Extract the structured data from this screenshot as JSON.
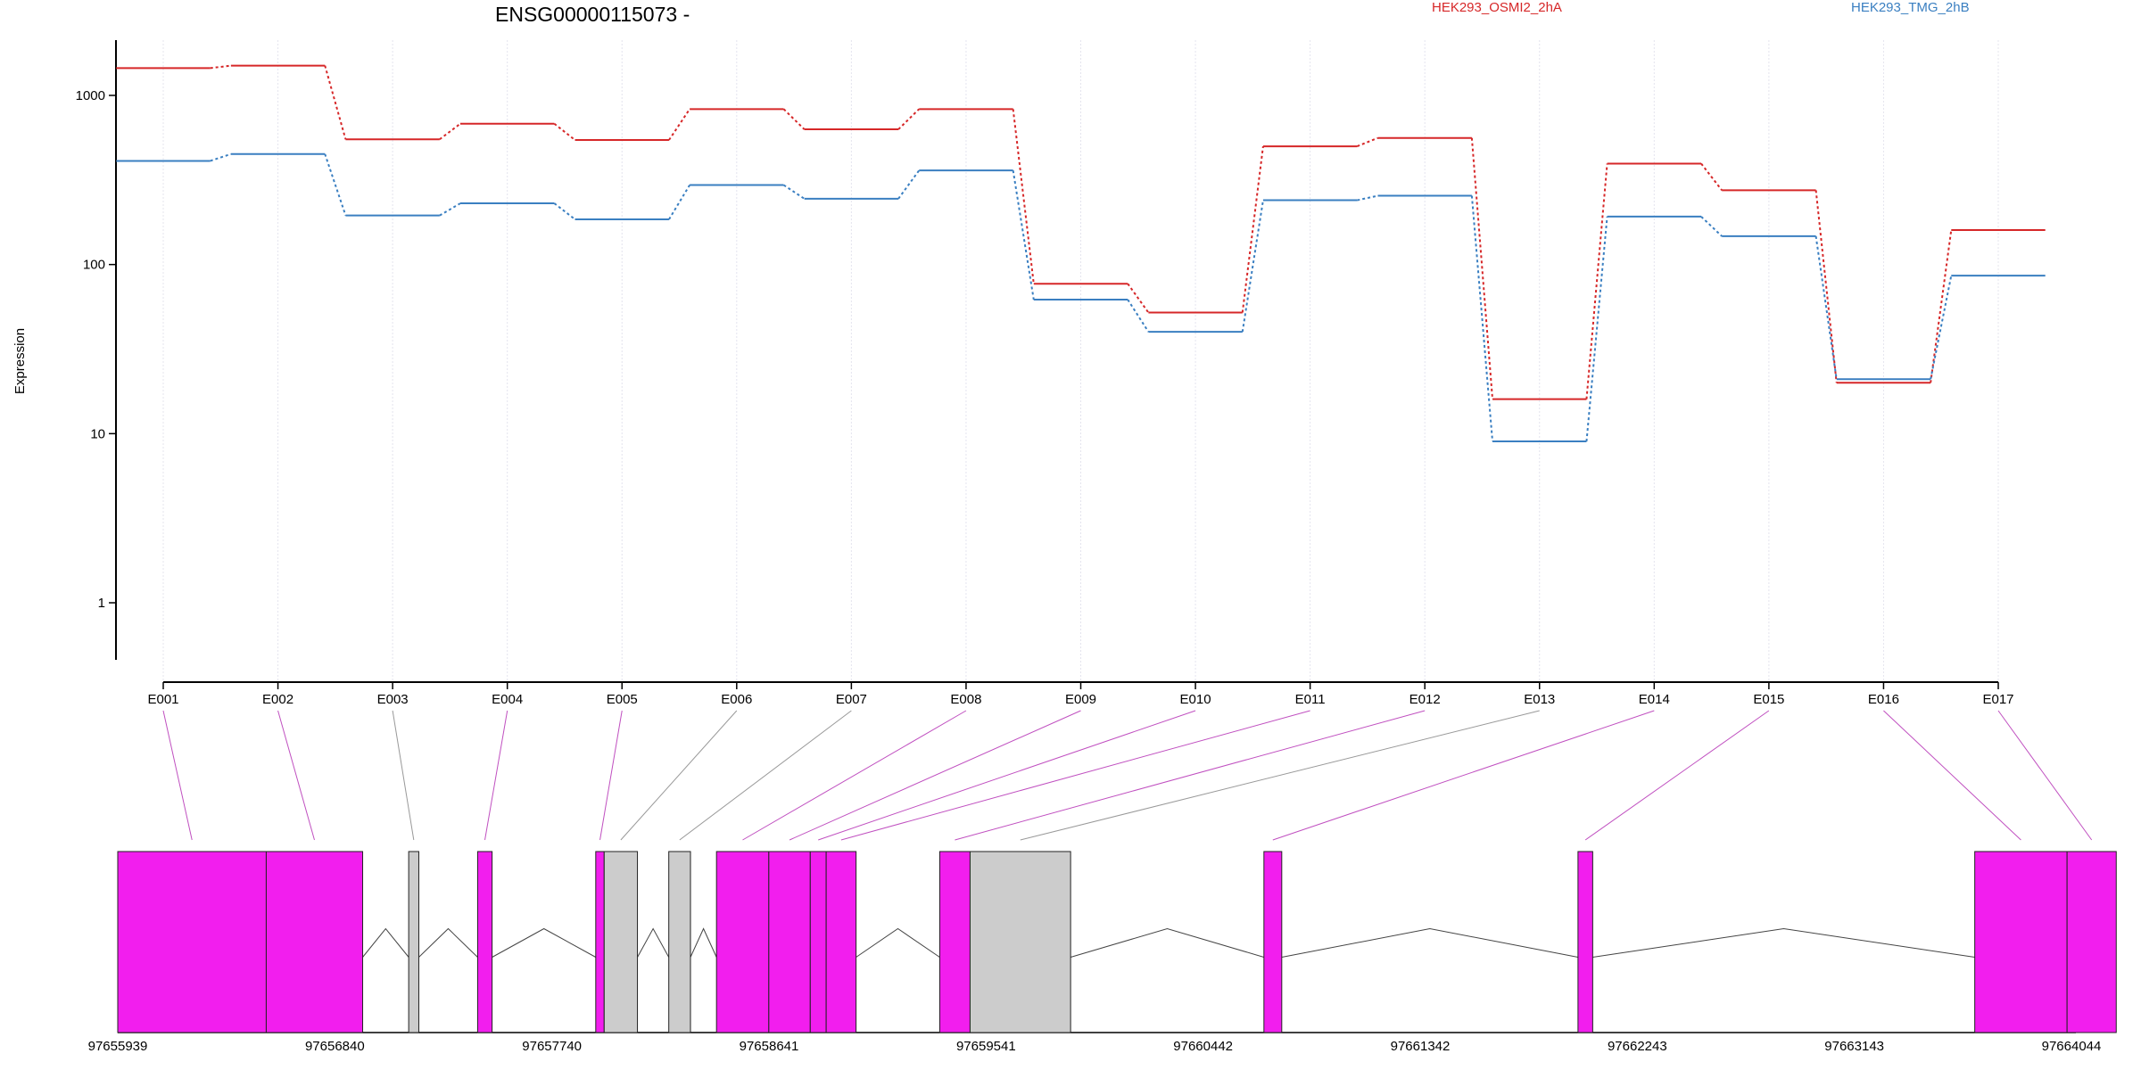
{
  "chart_data": {
    "type": "line",
    "title": "ENSG00000115073 -",
    "ylabel": "Expression",
    "y_scale": "log",
    "ylim": [
      0.5,
      2000
    ],
    "y_ticks": [
      1,
      10,
      100,
      1000
    ],
    "y_tick_labels": [
      "1",
      "10",
      "100",
      "1000"
    ],
    "grid": "vertical dotted lines at each exon",
    "categories": [
      "E001",
      "E002",
      "E003",
      "E004",
      "E005",
      "E006",
      "E007",
      "E008",
      "E009",
      "E010",
      "E011",
      "E012",
      "E013",
      "E014",
      "E015",
      "E016",
      "E017"
    ],
    "series": [
      {
        "name": "HEK293_OSMI2_2hA",
        "color": "#d62728",
        "values": [
          1450,
          1500,
          550,
          680,
          545,
          830,
          630,
          830,
          77,
          52,
          500,
          560,
          16,
          395,
          275,
          20,
          160
        ]
      },
      {
        "name": "HEK293_TMG_2hB",
        "color": "#3a7fc1",
        "values": [
          410,
          450,
          195,
          230,
          185,
          295,
          245,
          360,
          62,
          40,
          240,
          255,
          9,
          192,
          147,
          21,
          86
        ]
      }
    ],
    "gene_model": {
      "x_ticks": [
        "97655939",
        "97656840",
        "97657740",
        "97658641",
        "97659541",
        "97660442",
        "97661342",
        "97662243",
        "97663143",
        "97664044"
      ],
      "genomic_start": 97655939,
      "genomic_end": 97664044,
      "tested_exon_color": "#f21eee",
      "untested_exon_color": "#cccccc",
      "exons": [
        {
          "id": "E001",
          "start": 97655939,
          "end": 97656555,
          "tested": true
        },
        {
          "id": "E002",
          "start": 97656555,
          "end": 97656955,
          "tested": true
        },
        {
          "id": "E003",
          "start": 97657146,
          "end": 97657188,
          "tested": false
        },
        {
          "id": "E004",
          "start": 97657432,
          "end": 97657492,
          "tested": true
        },
        {
          "id": "E005",
          "start": 97657922,
          "end": 97657957,
          "tested": true
        },
        {
          "id": "E006",
          "start": 97657957,
          "end": 97658095,
          "tested": false
        },
        {
          "id": "E007",
          "start": 97658225,
          "end": 97658315,
          "tested": false
        },
        {
          "id": "E008",
          "start": 97658423,
          "end": 97658640,
          "tested": true
        },
        {
          "id": "E009",
          "start": 97658640,
          "end": 97658812,
          "tested": true
        },
        {
          "id": "E010",
          "start": 97658812,
          "end": 97658878,
          "tested": true
        },
        {
          "id": "E011",
          "start": 97658878,
          "end": 97659002,
          "tested": true
        },
        {
          "id": "E012",
          "start": 97659349,
          "end": 97659475,
          "tested": true
        },
        {
          "id": "E013",
          "start": 97659475,
          "end": 97659892,
          "tested": false
        },
        {
          "id": "E014",
          "start": 97660694,
          "end": 97660768,
          "tested": true
        },
        {
          "id": "E015",
          "start": 97661997,
          "end": 97662058,
          "tested": true
        },
        {
          "id": "E016",
          "start": 97663643,
          "end": 97664026,
          "tested": true
        },
        {
          "id": "E017",
          "start": 97664026,
          "end": 97664230,
          "tested": true
        }
      ]
    }
  }
}
